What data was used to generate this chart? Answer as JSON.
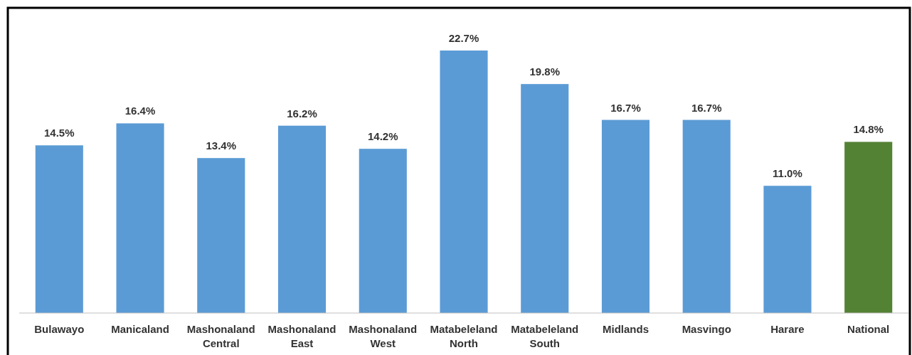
{
  "chart_data": {
    "type": "bar",
    "categories": [
      "Bulawayo",
      "Manicaland",
      "Mashonaland Central",
      "Mashonaland East",
      "Mashonaland West",
      "Matabeleland North",
      "Matabeleland South",
      "Midlands",
      "Masvingo",
      "Harare",
      "National"
    ],
    "values": [
      14.5,
      16.4,
      13.4,
      16.2,
      14.2,
      22.7,
      19.8,
      16.7,
      16.7,
      11.0,
      14.8
    ],
    "value_labels": [
      "14.5%",
      "16.4%",
      "13.4%",
      "16.2%",
      "14.2%",
      "22.7%",
      "19.8%",
      "16.7%",
      "16.7%",
      "11.0%",
      "14.8%"
    ],
    "colors": [
      "#5b9bd5",
      "#5b9bd5",
      "#5b9bd5",
      "#5b9bd5",
      "#5b9bd5",
      "#5b9bd5",
      "#5b9bd5",
      "#5b9bd5",
      "#5b9bd5",
      "#5b9bd5",
      "#548235"
    ]
  }
}
